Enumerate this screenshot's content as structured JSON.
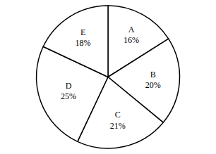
{
  "chart_data": {
    "type": "pie",
    "categories": [
      "A",
      "B",
      "C",
      "D",
      "E"
    ],
    "values": [
      16,
      20,
      21,
      25,
      18
    ],
    "value_labels": [
      "16%",
      "20%",
      "21%",
      "25%",
      "18%"
    ],
    "data_labels": true,
    "color": "#ffffff"
  }
}
